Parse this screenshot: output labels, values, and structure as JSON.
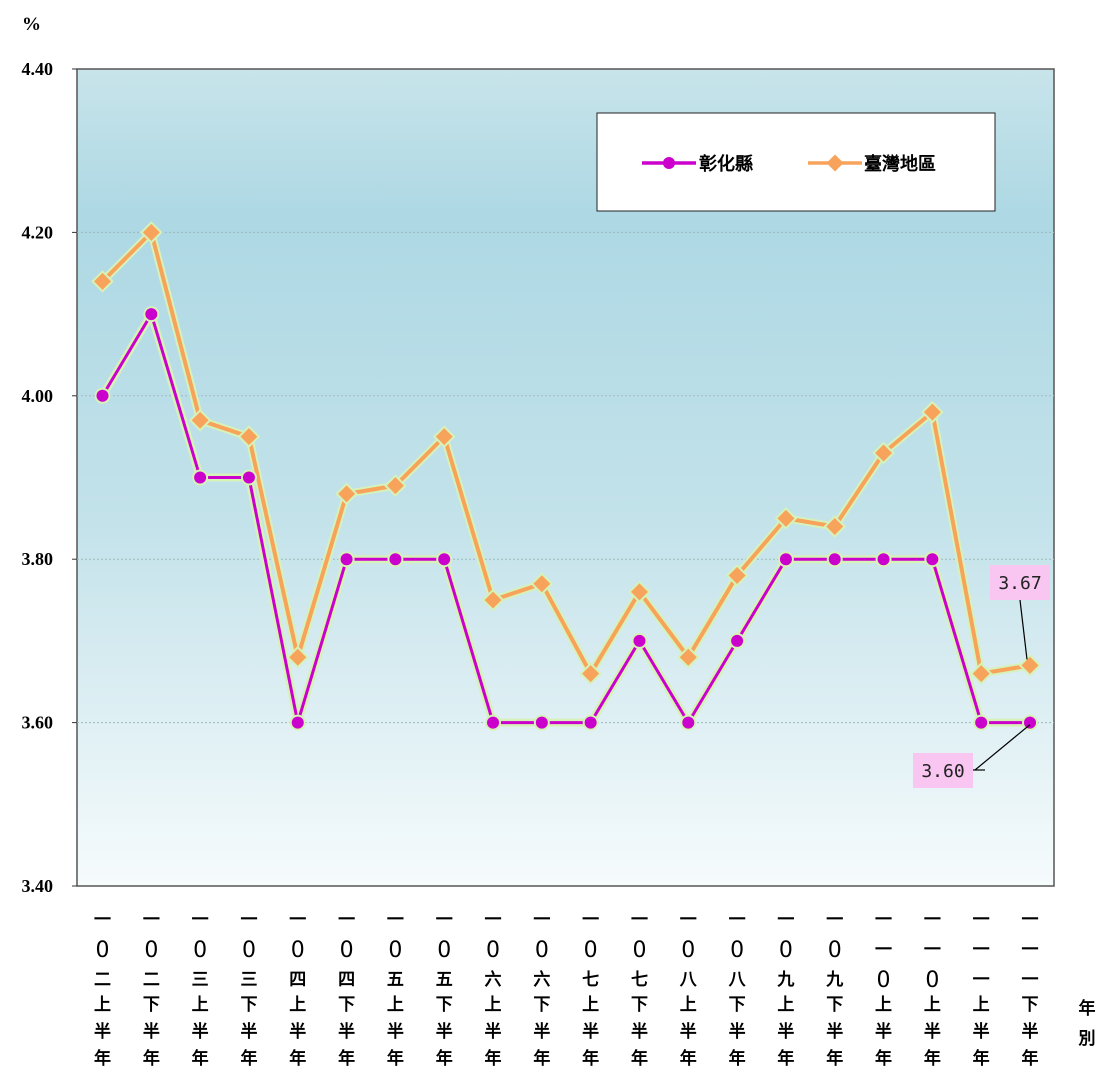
{
  "chart_data": {
    "type": "line",
    "ylabel": "%",
    "xlabel": "年別",
    "ylim": [
      3.4,
      4.4
    ],
    "yticks": [
      "3.40",
      "3.60",
      "3.80",
      "4.00",
      "4.20",
      "4.40"
    ],
    "categories": [
      "一〇二上半年",
      "一〇二下半年",
      "一〇三上半年",
      "一〇三下半年",
      "一〇四上半年",
      "一〇四下半年",
      "一〇五上半年",
      "一〇五下半年",
      "一〇六上半年",
      "一〇六下半年",
      "一〇七上半年",
      "一〇七下半年",
      "一〇八上半年",
      "一〇八下半年",
      "一〇九上半年",
      "一〇九下半年",
      "一一〇上半年",
      "一一〇上半年",
      "一一一上半年",
      "一一一下半年"
    ],
    "series": [
      {
        "name": "彰化縣",
        "color": "#cc00cc",
        "marker": "circle",
        "values": [
          4.0,
          4.1,
          3.9,
          3.9,
          3.6,
          3.8,
          3.8,
          3.8,
          3.6,
          3.6,
          3.6,
          3.7,
          3.6,
          3.7,
          3.8,
          3.8,
          3.8,
          3.8,
          3.6,
          3.6
        ]
      },
      {
        "name": "臺灣地區",
        "color": "#f7a35c",
        "marker": "diamond",
        "values": [
          4.14,
          4.2,
          3.97,
          3.95,
          3.68,
          3.88,
          3.89,
          3.95,
          3.75,
          3.77,
          3.66,
          3.76,
          3.68,
          3.78,
          3.85,
          3.84,
          3.93,
          3.98,
          3.66,
          3.67
        ]
      }
    ],
    "annotations": [
      {
        "text": "3.67",
        "series": 1,
        "index": 19,
        "position": "above-left"
      },
      {
        "text": "3.60",
        "series": 0,
        "index": 19,
        "position": "below-left"
      }
    ],
    "grid": true,
    "legend_position": "top-right",
    "background": "gradient-blue"
  }
}
